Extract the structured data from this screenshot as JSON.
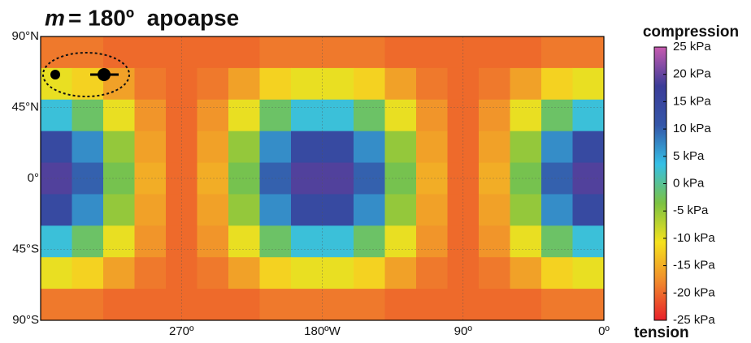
{
  "chart_data": {
    "type": "heatmap",
    "title_var": "m",
    "title": "= 180º  apoapse",
    "colorbar_top_label": "compression",
    "colorbar_bottom_label": "tension",
    "x": [
      350,
      330,
      310,
      290,
      270,
      250,
      230,
      210,
      190,
      170,
      150,
      130,
      110,
      90,
      70,
      50,
      30,
      10
    ],
    "y": [
      80,
      60,
      40,
      20,
      0,
      -20,
      -40,
      -60,
      -80
    ],
    "z": [
      [
        -19,
        -19,
        -20,
        -20,
        -20,
        -20,
        -20,
        -19,
        -19,
        -19,
        -19,
        -20,
        -20,
        -20,
        -20,
        -20,
        -19,
        -19
      ],
      [
        -10,
        -12,
        -16,
        -19,
        -20,
        -19,
        -16,
        -12,
        -10,
        -10,
        -12,
        -16,
        -19,
        -20,
        -19,
        -16,
        -12,
        -10
      ],
      [
        3,
        -2,
        -10,
        -17,
        -20,
        -17,
        -10,
        -2,
        3,
        3,
        -2,
        -10,
        -17,
        -20,
        -17,
        -10,
        -2,
        3
      ],
      [
        14,
        7,
        -5,
        -16,
        -20,
        -16,
        -5,
        7,
        14,
        14,
        7,
        -5,
        -16,
        -20,
        -16,
        -5,
        7,
        14
      ],
      [
        19,
        10,
        -3,
        -15,
        -20,
        -15,
        -3,
        10,
        19,
        19,
        10,
        -3,
        -15,
        -20,
        -15,
        -3,
        10,
        19
      ],
      [
        14,
        7,
        -5,
        -16,
        -20,
        -16,
        -5,
        7,
        14,
        14,
        7,
        -5,
        -16,
        -20,
        -16,
        -5,
        7,
        14
      ],
      [
        3,
        -2,
        -10,
        -17,
        -20,
        -17,
        -10,
        -2,
        3,
        3,
        -2,
        -10,
        -17,
        -20,
        -17,
        -10,
        -2,
        3
      ],
      [
        -10,
        -12,
        -16,
        -19,
        -20,
        -19,
        -16,
        -12,
        -10,
        -10,
        -12,
        -16,
        -19,
        -20,
        -19,
        -16,
        -12,
        -10
      ],
      [
        -19,
        -19,
        -20,
        -20,
        -20,
        -20,
        -20,
        -19,
        -19,
        -19,
        -19,
        -20,
        -20,
        -20,
        -20,
        -20,
        -19,
        -19
      ]
    ],
    "xlim": [
      360,
      0
    ],
    "ylim": [
      -90,
      90
    ],
    "xticks": [
      {
        "value": 270,
        "label": "270º"
      },
      {
        "value": 180,
        "label": "180ºW"
      },
      {
        "value": 90,
        "label": "90º"
      },
      {
        "value": 0,
        "label": "0º"
      }
    ],
    "yticks": [
      {
        "value": 90,
        "label": "90°N"
      },
      {
        "value": 45,
        "label": "45°N"
      },
      {
        "value": 0,
        "label": "0°"
      },
      {
        "value": -45,
        "label": "45°S"
      },
      {
        "value": -90,
        "label": "90°S"
      }
    ],
    "clim": [
      -25,
      25
    ],
    "cticks": [
      {
        "value": 25,
        "label": "25 kPa"
      },
      {
        "value": 20,
        "label": "20 kPa"
      },
      {
        "value": 15,
        "label": "15 kPa"
      },
      {
        "value": 10,
        "label": "10 kPa"
      },
      {
        "value": 5,
        "label": "5 kPa"
      },
      {
        "value": 0,
        "label": "0 kPa"
      },
      {
        "value": -5,
        "label": "-5 kPa"
      },
      {
        "value": -10,
        "label": "-10 kPa"
      },
      {
        "value": -15,
        "label": "-15 kPa"
      },
      {
        "value": -20,
        "label": "-20 kPa"
      },
      {
        "value": -25,
        "label": "-25 kPa"
      }
    ],
    "colorscale": [
      "#e8202a",
      "#f08a2c",
      "#f5e21e",
      "#7cc242",
      "#35c0e6",
      "#3456a8",
      "#3b3c98",
      "#c75bb0"
    ],
    "grid": true
  }
}
